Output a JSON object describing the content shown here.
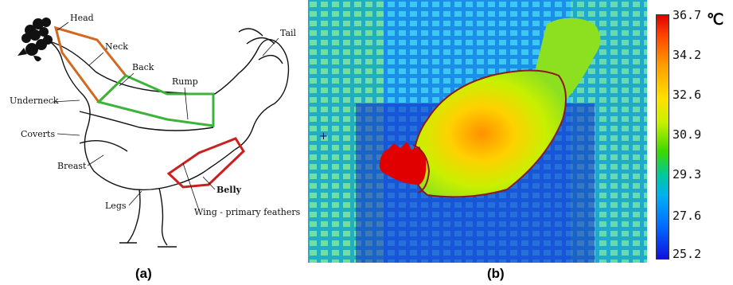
{
  "panel_a": {
    "labels": {
      "head": "Head",
      "neck": "Neck",
      "back": "Back",
      "rump": "Rump",
      "tail": "Tail",
      "underneck": "Underneck",
      "coverts": "Coverts",
      "breast": "Breast",
      "legs": "Legs",
      "belly": "Belly",
      "wing": "Wing - primary feathers"
    },
    "caption": "(a)",
    "region_colors": {
      "head_neck": "#d2691e",
      "back_rump": "#3cb43c",
      "wing_belly": "#cc1f1f"
    }
  },
  "panel_b": {
    "caption": "(b)",
    "colorbar": {
      "unit": "℃",
      "ticks": [
        "36.7",
        "34.2",
        "32.6",
        "30.9",
        "29.3",
        "27.6",
        "25.2"
      ],
      "colors": [
        "#e00000",
        "#ff9a00",
        "#ffe000",
        "#3cd800",
        "#00b0f0",
        "#0070ff",
        "#1010e0"
      ]
    },
    "outline_color": "#8b1a1a"
  }
}
